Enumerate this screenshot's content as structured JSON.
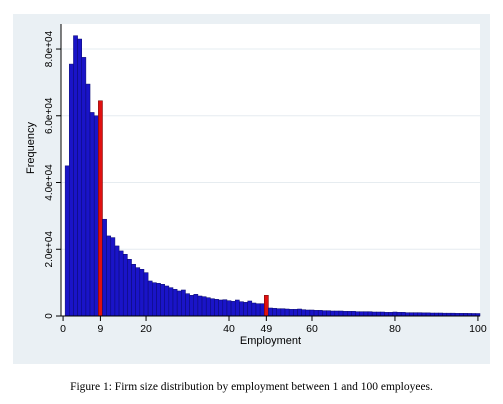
{
  "chart_data": {
    "type": "bar",
    "title": "",
    "xlabel": "Employment",
    "ylabel": "Frequency",
    "xlim": [
      -0.5,
      100.5
    ],
    "ylim": [
      0,
      87500
    ],
    "grid": true,
    "xticks": [
      0,
      9,
      20,
      40,
      49,
      60,
      80,
      100
    ],
    "yticks": [
      0,
      20000,
      40000,
      60000,
      80000
    ],
    "ytick_labels": [
      "0",
      "2.0e+04",
      "4.0e+04",
      "6.0e+04",
      "8.0e+04"
    ],
    "colors": {
      "bar_fill": "#1a14c8",
      "bar_edge": "#0a0a6e",
      "highlight_fill": "#e01010",
      "highlight_edge": "#6e0000",
      "panel_background": "#eaf0f4",
      "grid": "#ffffff"
    },
    "highlighted_x": [
      9,
      49
    ],
    "x": [
      1,
      2,
      3,
      4,
      5,
      6,
      7,
      8,
      9,
      10,
      11,
      12,
      13,
      14,
      15,
      16,
      17,
      18,
      19,
      20,
      21,
      22,
      23,
      24,
      25,
      26,
      27,
      28,
      29,
      30,
      31,
      32,
      33,
      34,
      35,
      36,
      37,
      38,
      39,
      40,
      41,
      42,
      43,
      44,
      45,
      46,
      47,
      48,
      49,
      50,
      51,
      52,
      53,
      54,
      55,
      56,
      57,
      58,
      59,
      60,
      61,
      62,
      63,
      64,
      65,
      66,
      67,
      68,
      69,
      70,
      71,
      72,
      73,
      74,
      75,
      76,
      77,
      78,
      79,
      80,
      81,
      82,
      83,
      84,
      85,
      86,
      87,
      88,
      89,
      90,
      91,
      92,
      93,
      94,
      95,
      96,
      97,
      98,
      99,
      100
    ],
    "values": [
      45000,
      75500,
      84000,
      83000,
      77500,
      69500,
      61000,
      60000,
      64500,
      29000,
      24000,
      23500,
      21000,
      19500,
      18500,
      17000,
      15500,
      14500,
      14000,
      13000,
      10500,
      10000,
      9800,
      9500,
      9000,
      8500,
      8000,
      7500,
      7800,
      6700,
      6200,
      6500,
      6000,
      5800,
      5500,
      5200,
      5000,
      4800,
      4900,
      4600,
      4400,
      4800,
      4300,
      4100,
      4500,
      3900,
      3700,
      3700,
      6200,
      2400,
      2300,
      2200,
      2200,
      2100,
      2000,
      2000,
      2100,
      1900,
      1800,
      1800,
      1700,
      1700,
      1600,
      1600,
      1500,
      1500,
      1500,
      1400,
      1400,
      1400,
      1300,
      1300,
      1300,
      1300,
      1200,
      1200,
      1200,
      1100,
      1100,
      1200,
      1100,
      1100,
      1000,
      1000,
      1000,
      1000,
      950,
      950,
      900,
      900,
      900,
      850,
      850,
      850,
      800,
      800,
      800,
      780,
      760,
      750
    ]
  },
  "caption": "Figure 1: Firm size distribution by employment between 1 and 100 employees."
}
